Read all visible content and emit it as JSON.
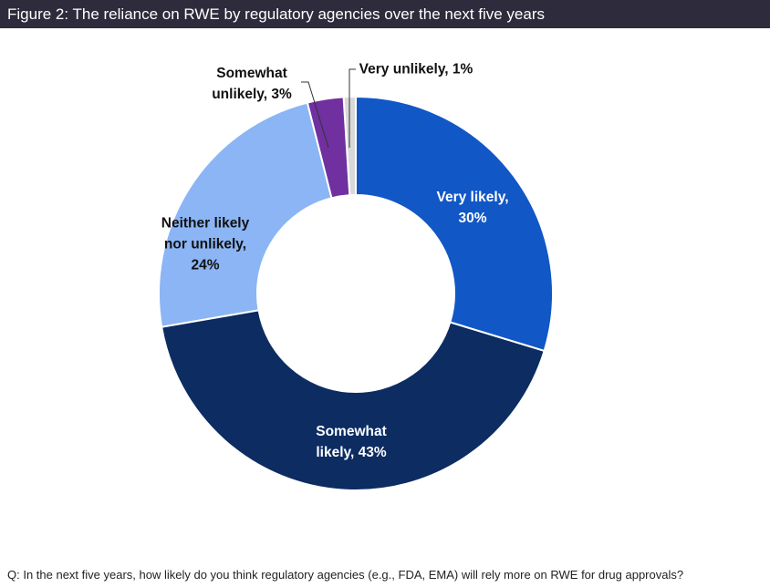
{
  "chart_data": {
    "type": "donut",
    "title": "Figure 2: The reliance on RWE by regulatory agencies over the next five years",
    "footnote": "Q: In the next five years, how likely do you think regulatory agencies (e.g., FDA, EMA) will rely more on RWE for drug approvals?",
    "values": [
      30,
      43,
      24,
      3,
      1
    ],
    "value_labels": [
      "Very likely, 30%",
      "Somewhat likely, 43%",
      "Neither likely nor unlikely, 24%",
      "Somewhat unlikely, 3%",
      "Very unlikely, 1%"
    ],
    "colors": [
      "#1157c6",
      "#0c2c62",
      "#8bb5f5",
      "#7030a0",
      "#d9d9d9"
    ]
  }
}
